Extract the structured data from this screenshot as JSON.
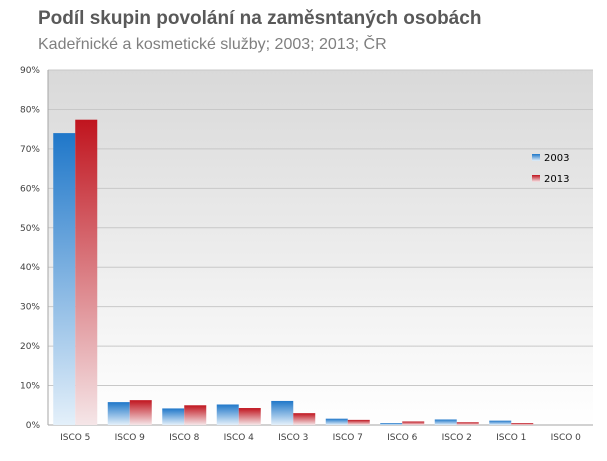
{
  "chart_data": {
    "type": "bar",
    "title": "Podíl skupin povolání na zaměsntaných osobách",
    "subtitle": "Kadeřnické a kosmetické služby; 2003; 2013; ČR",
    "xlabel": "",
    "ylabel": "",
    "ylim": [
      0,
      90
    ],
    "yticks": [
      "0%",
      "10%",
      "20%",
      "30%",
      "40%",
      "50%",
      "60%",
      "70%",
      "80%",
      "90%"
    ],
    "categories": [
      "ISCO 5",
      "ISCO 9",
      "ISCO 8",
      "ISCO 4",
      "ISCO 3",
      "ISCO 7",
      "ISCO 6",
      "ISCO 2",
      "ISCO 1",
      "ISCO 0"
    ],
    "series": [
      {
        "name": "2003",
        "color": "#1f77c9",
        "values": [
          74.0,
          5.8,
          4.2,
          5.2,
          6.1,
          1.6,
          0.5,
          1.4,
          1.1,
          0.0
        ]
      },
      {
        "name": "2013",
        "color": "#c0141e",
        "values": [
          77.4,
          6.3,
          5.0,
          4.3,
          3.0,
          1.3,
          0.9,
          0.7,
          0.5,
          0.0
        ]
      }
    ],
    "grid": true,
    "legend_position": "right"
  }
}
